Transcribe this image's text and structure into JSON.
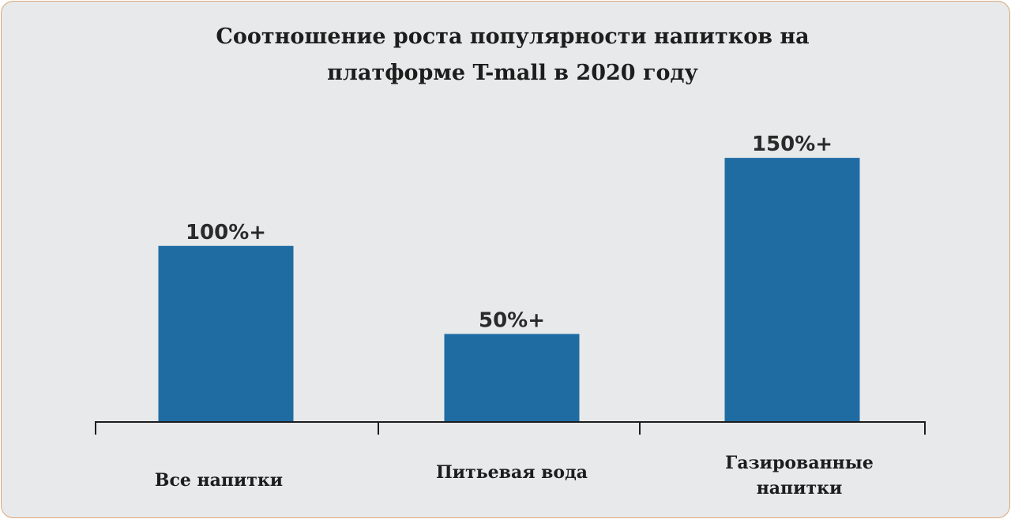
{
  "chart_data": {
    "type": "bar",
    "title_lines": [
      "Соотношение роста популярности напитков на",
      "платформе T-mall в 2020 году"
    ],
    "categories": [
      "Все напитки",
      "Питьевая вода",
      "Газированные напитки"
    ],
    "values": [
      100,
      50,
      150
    ],
    "value_labels": [
      "100%+",
      "50%+",
      "150%+"
    ],
    "ylim": [
      0,
      185
    ],
    "xlabel": "",
    "ylabel": "",
    "grid": false,
    "bar_color": "#1f6ca3",
    "background": "#e8e9eb"
  }
}
